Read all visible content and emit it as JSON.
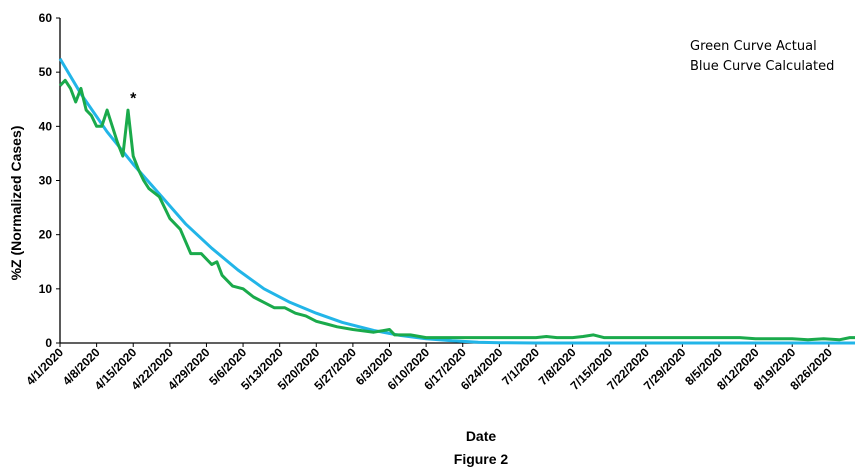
{
  "figure": {
    "caption": "Figure 2"
  },
  "legend": {
    "line1": "Green Curve Actual",
    "line2": "Blue Curve Calculated"
  },
  "chart_data": {
    "type": "line",
    "title": "",
    "xlabel": "Date",
    "ylabel": "%Z (Normalized Cases)",
    "ylim": [
      0,
      60
    ],
    "yticks": [
      0,
      10,
      20,
      30,
      40,
      50,
      60
    ],
    "xlim": [
      "4/1/2020",
      "8/31/2020"
    ],
    "xticks": [
      "4/1/2020",
      "4/8/2020",
      "4/15/2020",
      "4/22/2020",
      "4/29/2020",
      "5/6/2020",
      "5/13/2020",
      "5/20/2020",
      "5/27/2020",
      "6/3/2020",
      "6/10/2020",
      "6/17/2020",
      "6/24/2020",
      "7/1/2020",
      "7/8/2020",
      "7/15/2020",
      "7/22/2020",
      "7/29/2020",
      "8/5/2020",
      "8/12/2020",
      "8/19/2020",
      "8/26/2020"
    ],
    "grid": false,
    "annotations": [
      {
        "text": "*",
        "x": "4/15/2020",
        "y": 45
      }
    ],
    "series": [
      {
        "name": "Actual",
        "color": "#1aaa4b",
        "x": [
          "4/1/2020",
          "4/2/2020",
          "4/3/2020",
          "4/4/2020",
          "4/5/2020",
          "4/6/2020",
          "4/7/2020",
          "4/8/2020",
          "4/9/2020",
          "4/10/2020",
          "4/11/2020",
          "4/12/2020",
          "4/13/2020",
          "4/14/2020",
          "4/15/2020",
          "4/16/2020",
          "4/17/2020",
          "4/18/2020",
          "4/20/2020",
          "4/21/2020",
          "4/22/2020",
          "4/24/2020",
          "4/26/2020",
          "4/28/2020",
          "4/30/2020",
          "5/1/2020",
          "5/2/2020",
          "5/4/2020",
          "5/6/2020",
          "5/8/2020",
          "5/10/2020",
          "5/12/2020",
          "5/14/2020",
          "5/16/2020",
          "5/18/2020",
          "5/20/2020",
          "5/22/2020",
          "5/24/2020",
          "5/27/2020",
          "5/31/2020",
          "6/3/2020",
          "6/4/2020",
          "6/7/2020",
          "6/10/2020",
          "6/14/2020",
          "6/17/2020",
          "6/21/2020",
          "6/24/2020",
          "6/28/2020",
          "7/1/2020",
          "7/3/2020",
          "7/5/2020",
          "7/8/2020",
          "7/10/2020",
          "7/12/2020",
          "7/14/2020",
          "7/16/2020",
          "7/19/2020",
          "7/22/2020",
          "7/26/2020",
          "7/29/2020",
          "8/2/2020",
          "8/5/2020",
          "8/9/2020",
          "8/12/2020",
          "8/16/2020",
          "8/19/2020",
          "8/22/2020",
          "8/25/2020",
          "8/28/2020",
          "8/30/2020",
          "8/31/2020"
        ],
        "y": [
          47.5,
          48.5,
          47,
          44.5,
          47,
          43,
          42,
          40,
          40,
          43,
          40,
          37,
          34.5,
          43,
          34.5,
          32,
          30,
          28.5,
          27,
          25,
          23,
          21,
          16.5,
          16.5,
          14.5,
          15,
          12.5,
          10.5,
          10,
          8.5,
          7.5,
          6.5,
          6.5,
          5.5,
          5,
          4,
          3.5,
          3,
          2.5,
          2,
          2.5,
          1.5,
          1.5,
          1,
          1,
          1,
          1,
          1,
          1,
          1,
          1.2,
          1,
          1,
          1.2,
          1.5,
          1,
          1,
          1,
          1,
          1,
          1,
          1,
          1,
          1,
          0.8,
          0.8,
          0.8,
          0.6,
          0.8,
          0.6,
          1,
          1
        ]
      },
      {
        "name": "Calculated",
        "color": "#22b5e8",
        "x": [
          "4/1/2020",
          "4/5/2020",
          "4/10/2020",
          "4/15/2020",
          "4/20/2020",
          "4/25/2020",
          "4/30/2020",
          "5/5/2020",
          "5/10/2020",
          "5/15/2020",
          "5/20/2020",
          "5/25/2020",
          "5/31/2020",
          "6/5/2020",
          "6/10/2020",
          "6/15/2020",
          "6/20/2020",
          "6/24/2020",
          "7/1/2020",
          "7/15/2020",
          "8/1/2020",
          "8/15/2020",
          "8/31/2020"
        ],
        "y": [
          52.5,
          46,
          39,
          33,
          27.5,
          22,
          17.5,
          13.5,
          10,
          7.5,
          5.5,
          3.8,
          2.3,
          1.4,
          0.8,
          0.4,
          0.15,
          0.05,
          0,
          0,
          0,
          0,
          0
        ]
      }
    ]
  }
}
